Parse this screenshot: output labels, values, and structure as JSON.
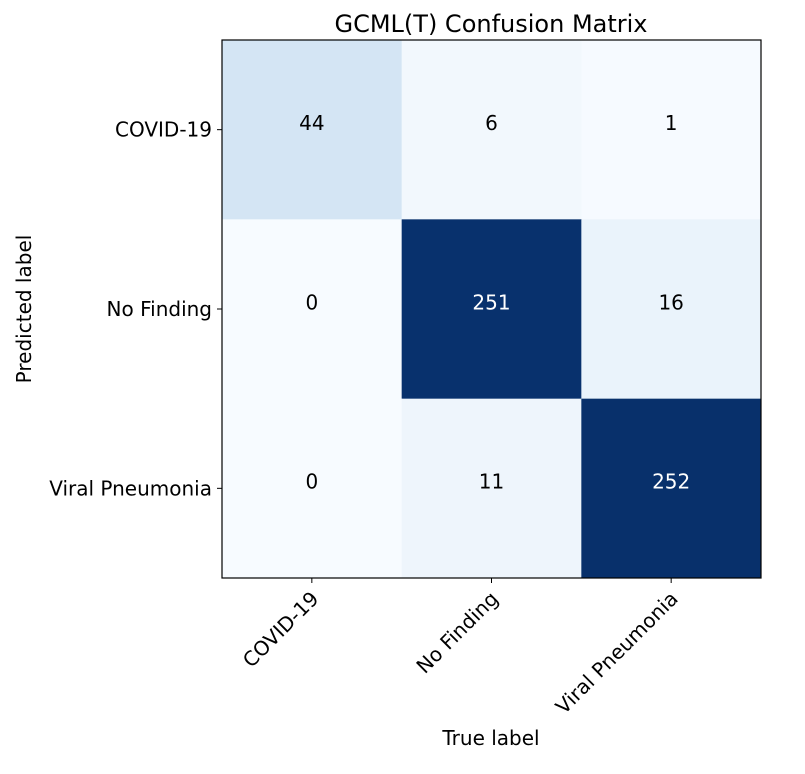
{
  "chart_data": {
    "type": "heatmap",
    "title": "GCML(T) Confusion Matrix",
    "xlabel": "True label",
    "ylabel": "Predicted label",
    "x_categories": [
      "COVID-19",
      "No Finding",
      "Viral Pneumonia"
    ],
    "y_categories": [
      "COVID-19",
      "No Finding",
      "Viral Pneumonia"
    ],
    "values": [
      [
        44,
        6,
        1
      ],
      [
        0,
        251,
        16
      ],
      [
        0,
        11,
        252
      ]
    ],
    "colormap": "Blues",
    "colormap_low": "#f7fbff",
    "colormap_high": "#08306b",
    "text_dark": "#000000",
    "text_light": "#ffffff",
    "grid": false
  }
}
